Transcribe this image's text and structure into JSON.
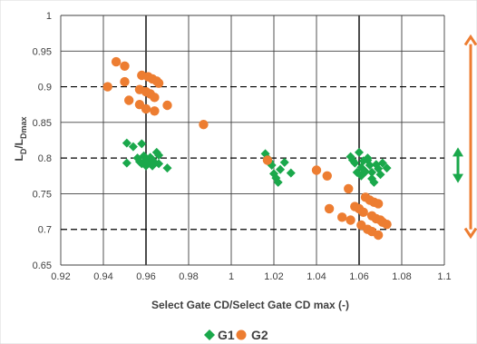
{
  "chart_data": {
    "type": "scatter",
    "xlabel": "Select Gate CD/Select Gate CD max (-)",
    "ylabel_main": "L",
    "ylabel_main_sub": "D",
    "ylabel_div": "/L",
    "ylabel_div_sub": "Dmax",
    "xlim": [
      0.92,
      1.1
    ],
    "ylim": [
      0.65,
      1.0
    ],
    "x_ticks": [
      "0.92",
      "0.94",
      "0.96",
      "0.98",
      "1",
      "1.02",
      "1.04",
      "1.06",
      "1.08",
      "1.1"
    ],
    "y_ticks": [
      "0.65",
      "0.7",
      "0.75",
      "0.8",
      "0.85",
      "0.9",
      "0.95",
      "1"
    ],
    "grid": true,
    "legend_placement": "bottom",
    "series": [
      {
        "name": "G1",
        "marker": "diamond",
        "color": "#1aa84b",
        "points": [
          [
            0.951,
            0.821
          ],
          [
            0.954,
            0.816
          ],
          [
            0.958,
            0.82
          ],
          [
            0.951,
            0.793
          ],
          [
            0.956,
            0.8
          ],
          [
            0.957,
            0.795
          ],
          [
            0.958,
            0.792
          ],
          [
            0.959,
            0.803
          ],
          [
            0.96,
            0.798
          ],
          [
            0.96,
            0.789
          ],
          [
            0.961,
            0.796
          ],
          [
            0.962,
            0.801
          ],
          [
            0.962,
            0.792
          ],
          [
            0.963,
            0.798
          ],
          [
            0.963,
            0.789
          ],
          [
            0.964,
            0.794
          ],
          [
            0.965,
            0.808
          ],
          [
            0.966,
            0.804
          ],
          [
            0.966,
            0.792
          ],
          [
            0.97,
            0.786
          ],
          [
            1.016,
            0.806
          ],
          [
            1.017,
            0.8
          ],
          [
            1.018,
            0.795
          ],
          [
            1.019,
            0.79
          ],
          [
            1.02,
            0.778
          ],
          [
            1.021,
            0.772
          ],
          [
            1.022,
            0.766
          ],
          [
            1.023,
            0.784
          ],
          [
            1.025,
            0.794
          ],
          [
            1.028,
            0.779
          ],
          [
            1.056,
            0.802
          ],
          [
            1.057,
            0.797
          ],
          [
            1.058,
            0.793
          ],
          [
            1.06,
            0.808
          ],
          [
            1.061,
            0.787
          ],
          [
            1.061,
            0.775
          ],
          [
            1.062,
            0.796
          ],
          [
            1.063,
            0.781
          ],
          [
            1.064,
            0.8
          ],
          [
            1.065,
            0.79
          ],
          [
            1.066,
            0.78
          ],
          [
            1.066,
            0.771
          ],
          [
            1.067,
            0.766
          ],
          [
            1.068,
            0.791
          ],
          [
            1.069,
            0.785
          ],
          [
            1.07,
            0.777
          ],
          [
            1.071,
            0.793
          ],
          [
            1.073,
            0.786
          ],
          [
            1.064,
            0.797
          ],
          [
            1.059,
            0.78
          ]
        ]
      },
      {
        "name": "G2",
        "marker": "circle",
        "color": "#ed7d31",
        "points": [
          [
            0.942,
            0.9
          ],
          [
            0.946,
            0.935
          ],
          [
            0.95,
            0.929
          ],
          [
            0.95,
            0.907
          ],
          [
            0.952,
            0.881
          ],
          [
            0.957,
            0.896
          ],
          [
            0.957,
            0.875
          ],
          [
            0.958,
            0.916
          ],
          [
            0.96,
            0.893
          ],
          [
            0.96,
            0.869
          ],
          [
            0.961,
            0.914
          ],
          [
            0.962,
            0.89
          ],
          [
            0.963,
            0.911
          ],
          [
            0.964,
            0.866
          ],
          [
            0.964,
            0.885
          ],
          [
            0.965,
            0.908
          ],
          [
            0.966,
            0.905
          ],
          [
            0.97,
            0.874
          ],
          [
            0.987,
            0.847
          ],
          [
            1.017,
            0.797
          ],
          [
            1.04,
            0.783
          ],
          [
            1.045,
            0.775
          ],
          [
            1.046,
            0.729
          ],
          [
            1.052,
            0.717
          ],
          [
            1.055,
            0.757
          ],
          [
            1.056,
            0.713
          ],
          [
            1.058,
            0.732
          ],
          [
            1.06,
            0.729
          ],
          [
            1.061,
            0.706
          ],
          [
            1.062,
            0.724
          ],
          [
            1.063,
            0.745
          ],
          [
            1.064,
            0.7
          ],
          [
            1.065,
            0.741
          ],
          [
            1.066,
            0.719
          ],
          [
            1.066,
            0.697
          ],
          [
            1.067,
            0.738
          ],
          [
            1.068,
            0.715
          ],
          [
            1.069,
            0.736
          ],
          [
            1.069,
            0.692
          ],
          [
            1.07,
            0.713
          ],
          [
            1.071,
            0.71
          ],
          [
            1.073,
            0.707
          ]
        ]
      }
    ],
    "annotations": [
      {
        "type": "double-arrow",
        "color": "#ed7d31",
        "y_range": [
          0.69,
          0.97
        ]
      },
      {
        "type": "double-arrow",
        "color": "#1aa84b",
        "y_range": [
          0.765,
          0.815
        ]
      }
    ]
  }
}
